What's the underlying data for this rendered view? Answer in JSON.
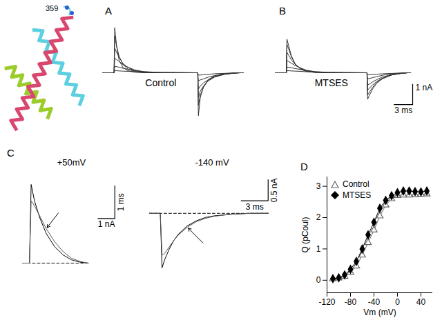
{
  "structure": {
    "label": "359"
  },
  "chart_data": [
    {
      "type": "line",
      "title": "A",
      "subtitle": "Control",
      "tick_labels": false,
      "xlim": [
        0,
        24
      ],
      "ylim": [
        -2.6,
        2.6
      ],
      "x": [
        0,
        1.8,
        1.9,
        2.2,
        2.6,
        3.2,
        4,
        5,
        6.5,
        9,
        14.9,
        15,
        15.3,
        15.8,
        16.5,
        17.5,
        19,
        20.5,
        21.5,
        22
      ],
      "series": [
        {
          "color": "#333333",
          "values": [
            0,
            0,
            2.2,
            1.3,
            0.6,
            0.25,
            0.1,
            0.03,
            0,
            0,
            0,
            -2.1,
            -1.2,
            -0.7,
            -0.35,
            -0.15,
            -0.05,
            -0.01,
            0,
            0
          ]
        },
        {
          "color": "#333333",
          "values": [
            0,
            0,
            1.8,
            1.3,
            0.8,
            0.4,
            0.18,
            0.06,
            0.01,
            0,
            0,
            -1.6,
            -1.1,
            -0.7,
            -0.4,
            -0.2,
            -0.07,
            -0.02,
            0,
            0
          ]
        },
        {
          "color": "#333333",
          "values": [
            0,
            0,
            1.2,
            1.0,
            0.75,
            0.45,
            0.25,
            0.1,
            0.03,
            0,
            0,
            -1.2,
            -0.9,
            -0.65,
            -0.4,
            -0.22,
            -0.08,
            -0.02,
            0,
            0
          ]
        },
        {
          "color": "#333333",
          "values": [
            0,
            0,
            0.7,
            0.65,
            0.55,
            0.4,
            0.27,
            0.14,
            0.05,
            0.01,
            0,
            -0.8,
            -0.65,
            -0.5,
            -0.35,
            -0.2,
            -0.08,
            -0.02,
            0,
            0
          ]
        },
        {
          "color": "#333333",
          "values": [
            0,
            0,
            0.3,
            0.3,
            0.27,
            0.22,
            0.17,
            0.1,
            0.05,
            0.02,
            0,
            -0.4,
            -0.35,
            -0.3,
            -0.22,
            -0.14,
            -0.06,
            -0.02,
            0,
            0
          ]
        },
        {
          "color": "#333333",
          "values": [
            0,
            0,
            0.1,
            0.1,
            0.09,
            0.08,
            0.07,
            0.05,
            0.03,
            0.01,
            0,
            -0.12,
            -0.11,
            -0.1,
            -0.08,
            -0.05,
            -0.03,
            -0.01,
            0,
            0
          ]
        }
      ]
    },
    {
      "type": "line",
      "title": "B",
      "subtitle": "MTSES",
      "tick_labels": false,
      "xlim": [
        0,
        24
      ],
      "ylim": [
        -2.6,
        2.6
      ],
      "scale_bar": {
        "x": 3,
        "x_label": "3 ms",
        "y": 1,
        "y_label": "1 nA"
      },
      "x": [
        0,
        1.8,
        1.9,
        2.2,
        2.6,
        3.2,
        4,
        5,
        6.5,
        9,
        14.9,
        15,
        15.3,
        15.8,
        16.5,
        17.5,
        19,
        20.5,
        21.5,
        22
      ],
      "series": [
        {
          "color": "#333333",
          "values": [
            0,
            0,
            1.65,
            1.3,
            0.85,
            0.45,
            0.2,
            0.07,
            0.01,
            0,
            0,
            -1.3,
            -1.1,
            -0.8,
            -0.5,
            -0.28,
            -0.1,
            -0.03,
            0,
            0
          ]
        },
        {
          "color": "#333333",
          "values": [
            0,
            0,
            1.4,
            1.15,
            0.8,
            0.45,
            0.22,
            0.08,
            0.02,
            0,
            0,
            -1.1,
            -0.95,
            -0.72,
            -0.47,
            -0.27,
            -0.1,
            -0.03,
            0,
            0
          ]
        },
        {
          "color": "#333333",
          "values": [
            0,
            0,
            1.0,
            0.85,
            0.65,
            0.42,
            0.24,
            0.1,
            0.03,
            0,
            0,
            -0.85,
            -0.75,
            -0.6,
            -0.42,
            -0.25,
            -0.1,
            -0.03,
            0,
            0
          ]
        },
        {
          "color": "#333333",
          "values": [
            0,
            0,
            0.6,
            0.55,
            0.47,
            0.36,
            0.25,
            0.13,
            0.05,
            0.01,
            0,
            -0.6,
            -0.55,
            -0.45,
            -0.33,
            -0.2,
            -0.08,
            -0.02,
            0,
            0
          ]
        },
        {
          "color": "#333333",
          "values": [
            0,
            0,
            0.28,
            0.27,
            0.25,
            0.21,
            0.16,
            0.1,
            0.05,
            0.02,
            0,
            -0.3,
            -0.28,
            -0.24,
            -0.19,
            -0.12,
            -0.05,
            -0.02,
            0,
            0
          ]
        },
        {
          "color": "#333333",
          "values": [
            0,
            0,
            0.1,
            0.1,
            0.09,
            0.08,
            0.07,
            0.05,
            0.03,
            0.01,
            0,
            -0.1,
            -0.1,
            -0.09,
            -0.07,
            -0.05,
            -0.03,
            -0.01,
            0,
            0
          ]
        }
      ]
    },
    {
      "type": "line",
      "title": "C",
      "subtitle": "+50mV",
      "tick_labels": false,
      "xlim": [
        -0.5,
        5.5
      ],
      "ylim": [
        -0.4,
        2.8
      ],
      "baseline": 0,
      "scale_bar": {
        "x": 1,
        "x_label": "1 nA",
        "y": 1,
        "y_label": "1 ms"
      },
      "x": [
        -0.4,
        0,
        0.1,
        0.3,
        0.6,
        1.0,
        1.5,
        2.0,
        2.5,
        3.0,
        3.5
      ],
      "series": [
        {
          "color": "#000000",
          "values": [
            0,
            0,
            2.4,
            1.9,
            1.4,
            0.9,
            0.5,
            0.25,
            0.1,
            0.03,
            0
          ]
        },
        {
          "color": "#555555",
          "values": [
            0,
            0,
            1.9,
            1.75,
            1.45,
            1.05,
            0.65,
            0.35,
            0.15,
            0.05,
            0
          ]
        }
      ]
    },
    {
      "type": "line",
      "subtitle": "-140 mV",
      "tick_labels": false,
      "xlim": [
        -1.5,
        13
      ],
      "ylim": [
        -1.5,
        1.0
      ],
      "baseline": 0,
      "scale_bar": {
        "x": 3,
        "x_label": "3 ms",
        "y": 0.5,
        "y_label": "0.5 nA"
      },
      "x": [
        -1.2,
        0,
        0.2,
        0.5,
        1,
        1.5,
        2,
        3,
        4,
        5,
        6,
        8,
        10,
        12
      ],
      "series": [
        {
          "color": "#000000",
          "values": [
            0,
            0,
            -1.3,
            -1.1,
            -0.85,
            -0.65,
            -0.5,
            -0.3,
            -0.18,
            -0.1,
            -0.06,
            -0.02,
            0,
            0
          ]
        },
        {
          "color": "#555555",
          "values": [
            0,
            0,
            -1.0,
            -0.95,
            -0.8,
            -0.65,
            -0.52,
            -0.33,
            -0.2,
            -0.12,
            -0.07,
            -0.02,
            0,
            0
          ]
        }
      ]
    },
    {
      "type": "scatter",
      "title": "D",
      "x_label": "Vm (mV)",
      "y_label": "Q (pCoul)",
      "xlim": [
        -120,
        60
      ],
      "xticks": [
        -120,
        -80,
        -40,
        0,
        40
      ],
      "ylim": [
        -0.4,
        3.3
      ],
      "yticks": [
        0,
        1,
        2,
        3
      ],
      "legend": "top-left",
      "x": [
        -110,
        -100,
        -90,
        -80,
        -70,
        -60,
        -50,
        -40,
        -30,
        -20,
        -10,
        0,
        10,
        20,
        30,
        40,
        50
      ],
      "series": [
        {
          "name": "Control",
          "color": "#666666",
          "marker": "triangle_open",
          "line_style": "solid",
          "values": [
            0.04,
            0.07,
            0.12,
            0.25,
            0.45,
            0.8,
            1.2,
            1.6,
            2.05,
            2.4,
            2.6,
            2.7,
            2.72,
            2.72,
            2.73,
            2.74,
            2.75
          ]
        },
        {
          "name": "MTSES",
          "color": "#000000",
          "marker": "diamond",
          "line_style": "solid",
          "values": [
            0.05,
            0.08,
            0.17,
            0.35,
            0.6,
            1.0,
            1.45,
            1.85,
            2.3,
            2.55,
            2.7,
            2.8,
            2.85,
            2.85,
            2.83,
            2.82,
            2.85
          ]
        }
      ]
    }
  ]
}
